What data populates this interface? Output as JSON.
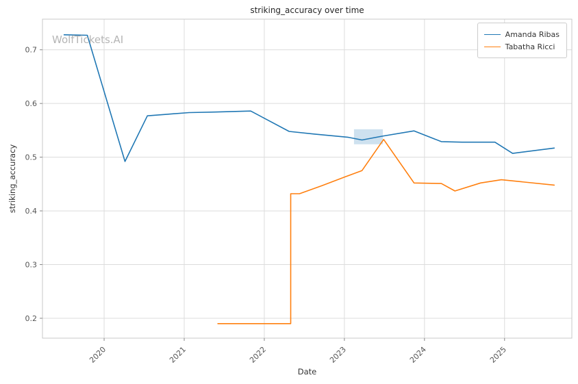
{
  "watermark": "WolfTickets.AI",
  "chart_data": {
    "type": "line",
    "title": "striking_accuracy over time",
    "xlabel": "Date",
    "ylabel": "striking_accuracy",
    "xlim": [
      2019.23,
      2025.84
    ],
    "ylim": [
      0.163,
      0.757
    ],
    "x_ticks": [
      2020,
      2021,
      2022,
      2023,
      2024,
      2025
    ],
    "y_ticks": [
      0.2,
      0.3,
      0.4,
      0.5,
      0.6,
      0.7
    ],
    "grid": true,
    "legend_position": "upper right",
    "series": [
      {
        "name": "Amanda Ribas",
        "color": "#1f77b4",
        "x": [
          2019.5,
          2019.79,
          2020.26,
          2020.54,
          2020.79,
          2021.06,
          2021.38,
          2021.83,
          2022.31,
          2022.63,
          2023.05,
          2023.22,
          2023.47,
          2023.87,
          2024.21,
          2024.47,
          2024.88,
          2025.1,
          2025.62
        ],
        "y": [
          0.728,
          0.727,
          0.492,
          0.577,
          0.58,
          0.583,
          0.584,
          0.586,
          0.548,
          0.543,
          0.537,
          0.532,
          0.539,
          0.549,
          0.529,
          0.528,
          0.528,
          0.507,
          0.517
        ]
      },
      {
        "name": "Tabatha Ricci",
        "color": "#ff7f0e",
        "x": [
          2021.42,
          2021.8,
          2022.15,
          2022.33,
          2022.33,
          2022.44,
          2022.72,
          2023.02,
          2023.22,
          2023.49,
          2023.87,
          2024.21,
          2024.38,
          2024.7,
          2024.96,
          2025.62
        ],
        "y": [
          0.19,
          0.19,
          0.19,
          0.19,
          0.432,
          0.432,
          0.447,
          0.464,
          0.475,
          0.533,
          0.452,
          0.451,
          0.437,
          0.452,
          0.458,
          0.448
        ]
      }
    ],
    "band": {
      "series": "Amanda Ribas",
      "color": "#1f77b4",
      "opacity": 0.22,
      "x": [
        2023.12,
        2023.48
      ],
      "y": [
        0.524,
        0.552
      ]
    }
  }
}
